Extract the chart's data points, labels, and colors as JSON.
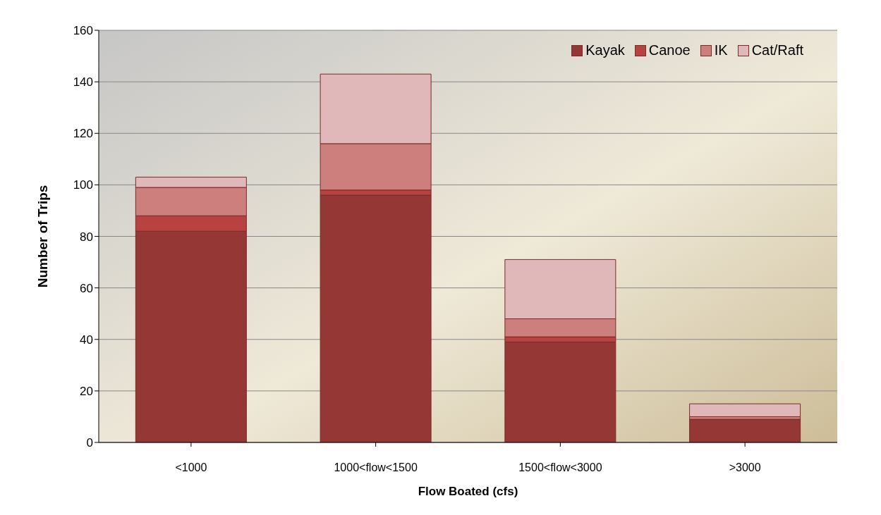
{
  "chart_data": {
    "type": "bar",
    "stacked": true,
    "xlabel": "Flow Boated  (cfs)",
    "ylabel": "Number of Trips",
    "categories": [
      "<1000",
      "1000<flow<1500",
      "1500<flow<3000",
      ">3000"
    ],
    "series": [
      {
        "name": "Kayak",
        "color": "#953735",
        "values": [
          82,
          96,
          39,
          9
        ]
      },
      {
        "name": "Canoe",
        "color": "#b8423f",
        "values": [
          6,
          2,
          2,
          0
        ]
      },
      {
        "name": "IK",
        "color": "#cd7f7e",
        "values": [
          11,
          18,
          7,
          1
        ]
      },
      {
        "name": "Cat/Raft",
        "color": "#e0b8b9",
        "values": [
          4,
          27,
          23,
          5
        ]
      }
    ],
    "ylim": [
      0,
      160
    ],
    "yticks": [
      0,
      20,
      40,
      60,
      80,
      100,
      120,
      140,
      160
    ],
    "grid": "y",
    "legend": "top right"
  }
}
